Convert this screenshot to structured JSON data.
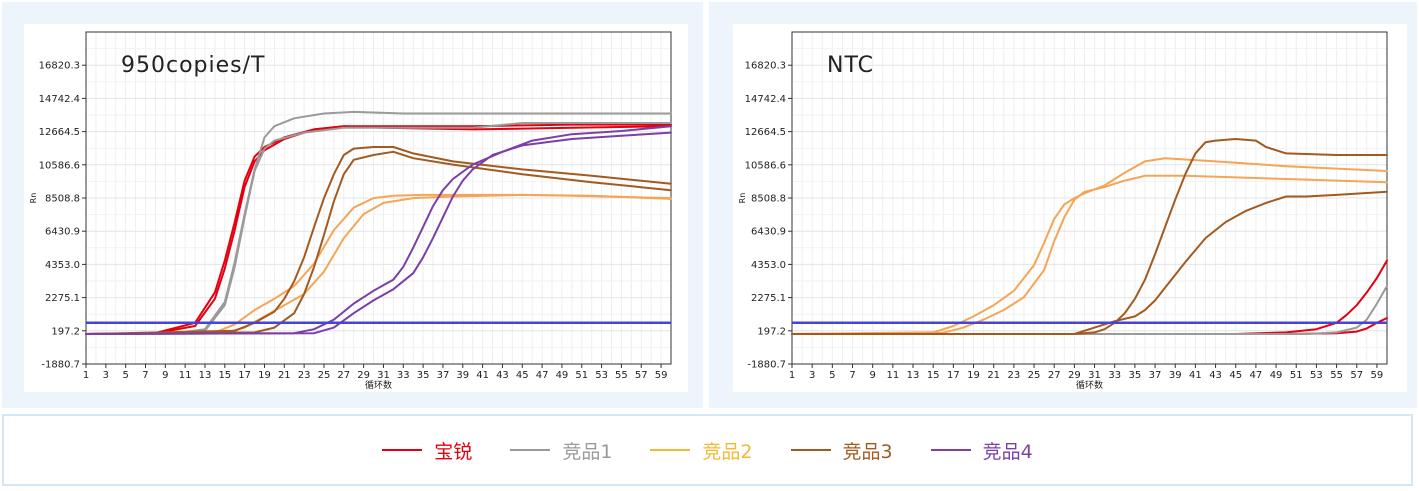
{
  "chart_data": [
    {
      "type": "line",
      "title": "950copies/T",
      "xlabel": "循环数",
      "ylabel": "Rn",
      "xlim": [
        1,
        60
      ],
      "ylim": [
        -1880.7,
        18898.4
      ],
      "x_ticks": [
        1,
        3,
        5,
        7,
        9,
        11,
        13,
        15,
        17,
        19,
        21,
        23,
        25,
        27,
        29,
        31,
        33,
        35,
        37,
        39,
        41,
        43,
        45,
        47,
        49,
        51,
        53,
        55,
        57,
        59
      ],
      "y_ticks": [
        "-1880.7",
        "197.2",
        "2275.1",
        "4353.0",
        "6430.9",
        "8508.8",
        "10586.6",
        "12664.5",
        "14742.4",
        "16820.3"
      ],
      "threshold": 700,
      "series": [
        {
          "group": "宝锐",
          "color": "#e3000f",
          "x": [
            1,
            8,
            12,
            14,
            15,
            16,
            17,
            18,
            19,
            21,
            24,
            27,
            31,
            40,
            50,
            60
          ],
          "y": [
            0,
            60,
            700,
            2600,
            4600,
            7000,
            9600,
            11100,
            11700,
            12300,
            12800,
            13000,
            12900,
            12800,
            12900,
            13000
          ]
        },
        {
          "group": "宝锐",
          "color": "#e3000f",
          "x": [
            1,
            8,
            12,
            14,
            15,
            16,
            17,
            18,
            19,
            21,
            24,
            27,
            31,
            40,
            50,
            60
          ],
          "y": [
            0,
            40,
            500,
            2200,
            4100,
            6500,
            9200,
            10800,
            11500,
            12200,
            12800,
            13000,
            13000,
            13000,
            13100,
            13100
          ]
        },
        {
          "group": "竞品1",
          "color": "#9a9a9a",
          "x": [
            1,
            10,
            13,
            15,
            16,
            17,
            18,
            19,
            20,
            22,
            25,
            28,
            33,
            40,
            47,
            52,
            60
          ],
          "y": [
            0,
            40,
            300,
            2000,
            4500,
            7500,
            10300,
            12300,
            13000,
            13500,
            13800,
            13900,
            13800,
            13800,
            13800,
            13800,
            13800
          ]
        },
        {
          "group": "竞品1",
          "color": "#9a9a9a",
          "x": [
            1,
            10,
            13,
            15,
            16,
            17,
            18,
            19,
            20,
            23,
            27,
            33,
            40,
            45,
            50,
            60
          ],
          "y": [
            0,
            30,
            200,
            1800,
            4200,
            7300,
            10200,
            11600,
            12100,
            12600,
            12900,
            12900,
            12900,
            13200,
            13200,
            13200
          ]
        },
        {
          "group": "竞品2",
          "color": "#f5a555",
          "x": [
            1,
            14,
            16,
            18,
            20,
            22,
            24,
            26,
            28,
            30,
            32,
            35,
            40,
            45,
            50,
            60
          ],
          "y": [
            0,
            100,
            600,
            1500,
            2200,
            3000,
            4400,
            6500,
            7900,
            8500,
            8650,
            8700,
            8700,
            8700,
            8650,
            8500
          ]
        },
        {
          "group": "竞品2",
          "color": "#f5a555",
          "x": [
            1,
            15,
            17,
            19,
            21,
            23,
            25,
            27,
            29,
            31,
            34,
            38,
            45,
            52,
            60
          ],
          "y": [
            0,
            80,
            400,
            1100,
            1800,
            2500,
            3900,
            6000,
            7500,
            8200,
            8500,
            8600,
            8700,
            8650,
            8450
          ]
        },
        {
          "group": "竞品3",
          "color": "#a35a1f",
          "x": [
            1,
            16,
            18,
            20,
            21,
            22,
            23,
            24,
            25,
            26,
            27,
            28,
            30,
            32,
            34,
            38,
            45,
            52,
            60
          ],
          "y": [
            0,
            200,
            700,
            1400,
            2200,
            3300,
            4800,
            6700,
            8500,
            10000,
            11200,
            11600,
            11700,
            11700,
            11300,
            10800,
            10300,
            9900,
            9400
          ]
        },
        {
          "group": "竞品3",
          "color": "#a35a1f",
          "x": [
            1,
            18,
            20,
            22,
            23,
            24,
            25,
            26,
            27,
            28,
            30,
            32,
            34,
            38,
            45,
            52,
            60
          ],
          "y": [
            0,
            100,
            400,
            1300,
            2500,
            4200,
            6200,
            8300,
            10000,
            10900,
            11200,
            11400,
            11000,
            10600,
            10000,
            9500,
            9000
          ]
        },
        {
          "group": "竞品4",
          "color": "#7b3fa6",
          "x": [
            1,
            22,
            24,
            26,
            28,
            30,
            32,
            33,
            34,
            35,
            36,
            37,
            38,
            40,
            43,
            46,
            50,
            55,
            60
          ],
          "y": [
            0,
            50,
            300,
            900,
            1900,
            2700,
            3400,
            4200,
            5400,
            6700,
            8000,
            9000,
            9700,
            10600,
            11400,
            12100,
            12500,
            12700,
            13000
          ]
        },
        {
          "group": "竞品4",
          "color": "#7b3fa6",
          "x": [
            1,
            24,
            26,
            28,
            30,
            32,
            34,
            35,
            36,
            37,
            38,
            39,
            40,
            42,
            45,
            50,
            55,
            60
          ],
          "y": [
            0,
            50,
            400,
            1300,
            2100,
            2800,
            3800,
            4800,
            6000,
            7300,
            8600,
            9600,
            10300,
            11200,
            11800,
            12200,
            12400,
            12600
          ]
        }
      ]
    },
    {
      "type": "line",
      "title": "NTC",
      "xlabel": "循环数",
      "ylabel": "Rn",
      "xlim": [
        1,
        60
      ],
      "ylim": [
        -1880.7,
        18898.4
      ],
      "x_ticks": [
        1,
        3,
        5,
        7,
        9,
        11,
        13,
        15,
        17,
        19,
        21,
        23,
        25,
        27,
        29,
        31,
        33,
        35,
        37,
        39,
        41,
        43,
        45,
        47,
        49,
        51,
        53,
        55,
        57,
        59
      ],
      "y_ticks": [
        "-1880.7",
        "197.2",
        "2275.1",
        "4353.0",
        "6430.9",
        "8508.8",
        "10586.6",
        "12664.5",
        "14742.4",
        "16820.3"
      ],
      "threshold": 700,
      "series": [
        {
          "group": "宝锐",
          "color": "#e3000f",
          "x": [
            1,
            45,
            50,
            53,
            55,
            56,
            57,
            58,
            59,
            60
          ],
          "y": [
            0,
            0,
            100,
            300,
            700,
            1200,
            1800,
            2600,
            3500,
            4600
          ]
        },
        {
          "group": "宝锐",
          "color": "#e3000f",
          "x": [
            1,
            50,
            55,
            57,
            58,
            59,
            60
          ],
          "y": [
            0,
            0,
            40,
            150,
            350,
            700,
            1000
          ]
        },
        {
          "group": "竞品1",
          "color": "#9a9a9a",
          "x": [
            1,
            52,
            55,
            57,
            58,
            59,
            60
          ],
          "y": [
            0,
            0,
            100,
            400,
            900,
            1900,
            3000
          ]
        },
        {
          "group": "竞品2",
          "color": "#f5a555",
          "x": [
            1,
            15,
            17,
            19,
            21,
            23,
            25,
            26,
            27,
            28,
            29,
            30,
            32,
            34,
            36,
            38,
            43,
            50,
            60
          ],
          "y": [
            0,
            100,
            500,
            1100,
            1800,
            2700,
            4300,
            5700,
            7200,
            8100,
            8500,
            8800,
            9300,
            10100,
            10800,
            11000,
            10800,
            10500,
            10200
          ]
        },
        {
          "group": "竞品2",
          "color": "#f5a555",
          "x": [
            1,
            16,
            18,
            20,
            22,
            24,
            26,
            27,
            28,
            29,
            30,
            32,
            34,
            36,
            40,
            50,
            60
          ],
          "y": [
            0,
            80,
            400,
            900,
            1500,
            2300,
            4000,
            5800,
            7300,
            8400,
            8900,
            9200,
            9600,
            9900,
            9900,
            9700,
            9500
          ]
        },
        {
          "group": "竞品3",
          "color": "#a35a1f",
          "x": [
            1,
            29,
            31,
            32,
            33,
            34,
            35,
            36,
            37,
            38,
            39,
            40,
            41,
            42,
            43,
            45,
            47,
            48,
            50,
            55,
            60
          ],
          "y": [
            0,
            0,
            100,
            300,
            700,
            1300,
            2200,
            3400,
            5000,
            6700,
            8400,
            10000,
            11300,
            12000,
            12100,
            12200,
            12100,
            11700,
            11300,
            11200,
            11200
          ]
        },
        {
          "group": "竞品3",
          "color": "#a35a1f",
          "x": [
            1,
            29,
            31,
            33,
            35,
            36,
            37,
            38,
            40,
            42,
            44,
            46,
            48,
            50,
            52,
            55,
            60
          ],
          "y": [
            0,
            0,
            400,
            800,
            1100,
            1500,
            2100,
            2900,
            4500,
            6000,
            7000,
            7700,
            8200,
            8600,
            8600,
            8700,
            8900
          ]
        }
      ]
    }
  ],
  "legend": [
    {
      "label": "宝锐",
      "color": "#e3000f"
    },
    {
      "label": "竞品1",
      "color": "#9a9a9a"
    },
    {
      "label": "竞品2",
      "color": "#f5b833"
    },
    {
      "label": "竞品3",
      "color": "#a35a1f"
    },
    {
      "label": "竞品4",
      "color": "#7b3fa6"
    }
  ],
  "colors": {
    "threshold": "#4444dd",
    "panel_bg": "#eef4fb",
    "legend_border": "#d5e6f6"
  }
}
